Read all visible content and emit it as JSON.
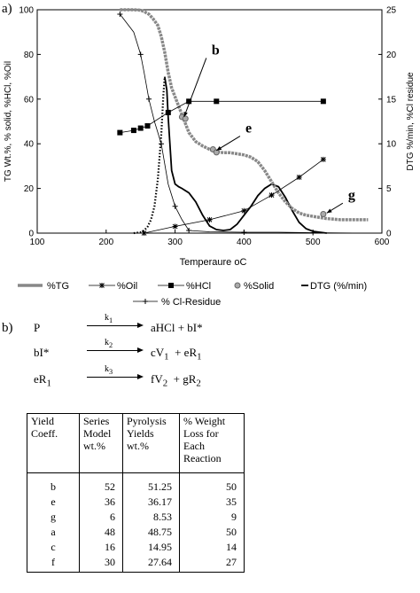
{
  "panel_a_label": "a)",
  "panel_b_label": "b)",
  "chart_data": {
    "type": "line",
    "xlabel": "Temperaure ",
    "xlabel_unit": "oC",
    "ylabel_left": "TG Wt.%, % solid, %HCl, %Oil",
    "ylabel_right": "DTG %/min, %Cl residue",
    "xlim": [
      100,
      600
    ],
    "ylim_left": [
      0,
      100
    ],
    "ylim_right": [
      0,
      25
    ],
    "x_ticks": [
      "100",
      "200",
      "300",
      "400",
      "500",
      "600"
    ],
    "y_left_ticks": [
      "0",
      "20",
      "40",
      "60",
      "80",
      "100"
    ],
    "y_right_ticks": [
      "0",
      "5",
      "10",
      "15",
      "20",
      "25"
    ],
    "grid": false,
    "legend_position": "bottom",
    "colors": {
      "tg": "#888888",
      "solid": "#aaaaaa",
      "axis": "#000000"
    },
    "series": [
      {
        "name": "%TG",
        "axis": "left",
        "style": "gray-thick",
        "x": [
          220,
          240,
          250,
          255,
          262,
          268,
          275,
          280,
          285,
          290,
          295,
          300,
          305,
          310,
          315,
          320,
          330,
          340,
          350,
          360,
          370,
          380,
          390,
          400,
          410,
          420,
          430,
          440,
          450,
          460,
          470,
          480,
          490,
          500,
          510,
          520,
          540,
          560,
          580
        ],
        "y": [
          100,
          100,
          99.8,
          99.2,
          98,
          96,
          93,
          88,
          81,
          72,
          65,
          61,
          57,
          53,
          49,
          45,
          41,
          39,
          37.5,
          36.5,
          36,
          36,
          35.5,
          35,
          34,
          32,
          28,
          23,
          18,
          14,
          11,
          9,
          8,
          7.5,
          7,
          6.5,
          6,
          6,
          6
        ]
      },
      {
        "name": "%Oil",
        "axis": "left",
        "marker": "star",
        "x": [
          255,
          300,
          350,
          400,
          440,
          480,
          515
        ],
        "y": [
          0,
          3,
          6,
          10,
          17,
          25,
          33
        ]
      },
      {
        "name": "%HCl",
        "axis": "left",
        "marker": "square",
        "x": [
          220,
          240,
          250,
          260,
          290,
          320,
          360,
          515
        ],
        "y": [
          45,
          46,
          47,
          48,
          54,
          59,
          59,
          59
        ]
      },
      {
        "name": "%Solid",
        "axis": "left",
        "marker": "circle",
        "x": [
          310,
          315,
          355,
          360,
          515
        ],
        "y": [
          52,
          51.25,
          37.5,
          36.17,
          8.53
        ]
      },
      {
        "name": "DTG (%/min)",
        "axis": "right",
        "style": "dotted-to-solid",
        "x": [
          240,
          250,
          255,
          260,
          265,
          270,
          275,
          280,
          283,
          285,
          288,
          290,
          295,
          300,
          305,
          310,
          320,
          330,
          340,
          350,
          360,
          370,
          380,
          390,
          400,
          410,
          420,
          430,
          440,
          450,
          460,
          470,
          480,
          490,
          500,
          520
        ],
        "y": [
          0,
          0.1,
          0.3,
          0.7,
          1.5,
          3,
          6,
          11,
          15.5,
          17.5,
          16,
          13,
          7,
          5.5,
          5.2,
          5,
          4.5,
          3.5,
          2,
          0.8,
          0.4,
          0.3,
          0.4,
          1,
          2,
          3,
          4.2,
          5,
          5.5,
          5.2,
          4,
          2.5,
          1.2,
          0.5,
          0.2,
          0
        ]
      },
      {
        "name": "% Cl-Residue",
        "axis": "right",
        "marker": "plus",
        "x": [
          220,
          240,
          250,
          255,
          262,
          270,
          280,
          290,
          300,
          310,
          320,
          350,
          400,
          450,
          500,
          580
        ],
        "y": [
          24.5,
          22.5,
          20,
          18,
          15,
          12.5,
          10,
          5.5,
          3,
          1.5,
          0.3,
          0.15,
          0.1,
          0.1,
          0.05,
          0
        ]
      }
    ],
    "annotations": [
      {
        "text": "b",
        "x": 353,
        "y": 80,
        "target_x": 313,
        "target_y": 52
      },
      {
        "text": "e",
        "x": 402,
        "y": 45,
        "target_x": 360,
        "target_y": 37
      },
      {
        "text": "g",
        "x": 551,
        "y": 15,
        "target_x": 520,
        "target_y": 9
      }
    ],
    "legend": [
      "%TG",
      "%Oil",
      "%HCl",
      "%Solid",
      "DTG (%/min)",
      "% Cl-Residue"
    ]
  },
  "scheme": [
    {
      "lhs": "P",
      "k": "k",
      "k_sub": "1",
      "rhs": "aHCl + bI*"
    },
    {
      "lhs": "bI*",
      "k": "k",
      "k_sub": "2",
      "rhs": "cV",
      "rhs_sub": "1",
      "rhs2": "  + eR",
      "rhs2_sub": "1"
    },
    {
      "lhs": "eR",
      "lhs_sub": "1",
      "k": "k",
      "k_sub": "3",
      "rhs": "fV",
      "rhs_sub": "2",
      "rhs2": "  + gR",
      "rhs2_sub": "2"
    }
  ],
  "table": {
    "headers": [
      "Yield Coeff.",
      "Series Model wt.%",
      "Pyrolysis Yields wt.%",
      "% Weight Loss for Each Reaction"
    ],
    "group1": [
      [
        "b",
        "52",
        "51.25",
        "50"
      ],
      [
        "e",
        "36",
        "36.17",
        "35"
      ],
      [
        "g",
        "6",
        "8.53",
        "9"
      ]
    ],
    "group2": [
      [
        "a",
        "48",
        "48.75",
        "50"
      ],
      [
        "c",
        "16",
        "14.95",
        "14"
      ],
      [
        "f",
        "30",
        "27.64",
        "27"
      ]
    ]
  }
}
